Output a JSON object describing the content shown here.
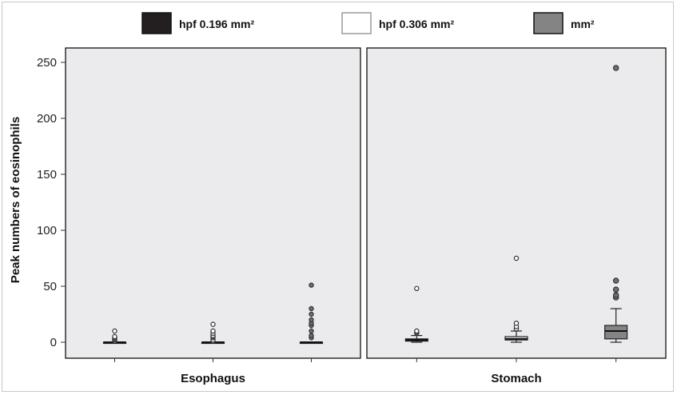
{
  "chart_data": {
    "type": "box",
    "ylabel": "Peak numbers of eosinophils",
    "ylim": [
      0,
      260
    ],
    "yticks": [
      0,
      50,
      100,
      150,
      200,
      250
    ],
    "legend": {
      "position": "top",
      "entries": [
        {
          "label": "hpf 0.196 mm²",
          "color": "#231f20"
        },
        {
          "label": "hpf 0.306 mm²",
          "color": "#ffffff"
        },
        {
          "label": "mm²",
          "color": "#848484"
        }
      ]
    },
    "panel_background": "#ebebee",
    "facets": [
      {
        "label": "Esophagus",
        "groups": [
          {
            "series": "hpf 0.196 mm²",
            "min": 0,
            "q1": 0,
            "median": 0,
            "q3": 0,
            "max": 0,
            "outliers": [
              1,
              2,
              3,
              4,
              5,
              10
            ]
          },
          {
            "series": "hpf 0.306 mm²",
            "min": 0,
            "q1": 0,
            "median": 0,
            "q3": 0,
            "max": 0,
            "outliers": [
              1,
              2,
              4,
              5,
              6,
              8,
              10,
              16
            ]
          },
          {
            "series": "mm²",
            "min": 0,
            "q1": 0,
            "median": 0,
            "q3": 0,
            "max": 0,
            "outliers": [
              4,
              6,
              10,
              15,
              17,
              20,
              25,
              30,
              51
            ]
          }
        ]
      },
      {
        "label": "Stomach",
        "groups": [
          {
            "series": "hpf 0.196 mm²",
            "min": 0,
            "q1": 1,
            "median": 2,
            "q3": 3,
            "max": 6,
            "outliers": [
              8,
              9,
              10,
              48
            ]
          },
          {
            "series": "hpf 0.306 mm²",
            "min": 0,
            "q1": 2,
            "median": 3,
            "q3": 5,
            "max": 10,
            "outliers": [
              12,
              14,
              17,
              75
            ]
          },
          {
            "series": "mm²",
            "min": 0,
            "q1": 3,
            "median": 10,
            "q3": 15,
            "max": 30,
            "outliers": [
              40,
              42,
              47,
              55,
              245
            ]
          }
        ]
      }
    ]
  }
}
